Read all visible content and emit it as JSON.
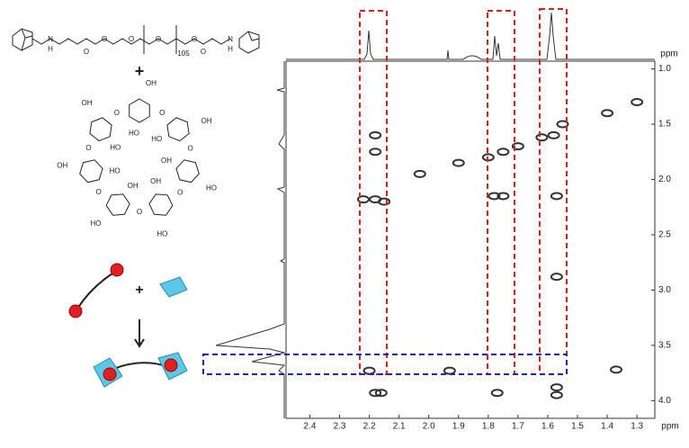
{
  "chart_data": {
    "type": "contour",
    "x_label": "ppm",
    "y_label": "ppm",
    "xlim": [
      2.48,
      1.24
    ],
    "ylim": [
      0.93,
      4.16
    ],
    "xticks": [
      2.4,
      2.3,
      2.2,
      2.1,
      {
        "value": 2.0,
        "label": "2.0"
      },
      1.9,
      1.8,
      1.7,
      1.6,
      1.5,
      1.4,
      1.3
    ],
    "yticks": [
      {
        "value": 1.0,
        "label": "1.0"
      },
      1.5,
      {
        "value": 2.0,
        "label": "2.0"
      },
      2.5,
      {
        "value": 3.0,
        "label": "3.0"
      },
      3.5,
      {
        "value": 4.0,
        "label": "4.0"
      }
    ],
    "color": "#333333",
    "x": [
      2.22,
      2.18,
      2.15,
      1.9,
      1.8,
      1.75,
      1.7,
      1.62,
      1.58,
      1.55,
      1.4,
      1.3,
      2.18,
      2.18,
      2.03,
      1.78,
      1.75,
      1.57,
      1.57,
      2.18,
      2.16,
      1.77,
      1.57,
      1.57,
      1.37,
      2.2,
      1.93
    ],
    "y": [
      2.18,
      2.18,
      2.2,
      1.85,
      1.8,
      1.75,
      1.7,
      1.62,
      1.6,
      1.5,
      1.4,
      1.3,
      1.6,
      1.75,
      1.95,
      2.15,
      2.15,
      2.15,
      2.88,
      3.93,
      3.93,
      3.93,
      3.88,
      3.95,
      3.72,
      3.73,
      3.73
    ]
  },
  "scheme": {
    "polymer_labels": [
      "N",
      "H",
      "O",
      "O",
      "O",
      "O",
      "105",
      "O",
      "O",
      "N",
      "H"
    ],
    "plus": [
      "+",
      "+"
    ],
    "cd_labels": [
      "OH",
      "HO",
      "O",
      "OH",
      "HO",
      "O",
      "HO",
      "OH",
      "O",
      "HO",
      "OH",
      "O",
      "HO",
      "OH",
      "O",
      "OH",
      "HO",
      "O",
      "OH",
      "HO",
      "O"
    ]
  }
}
